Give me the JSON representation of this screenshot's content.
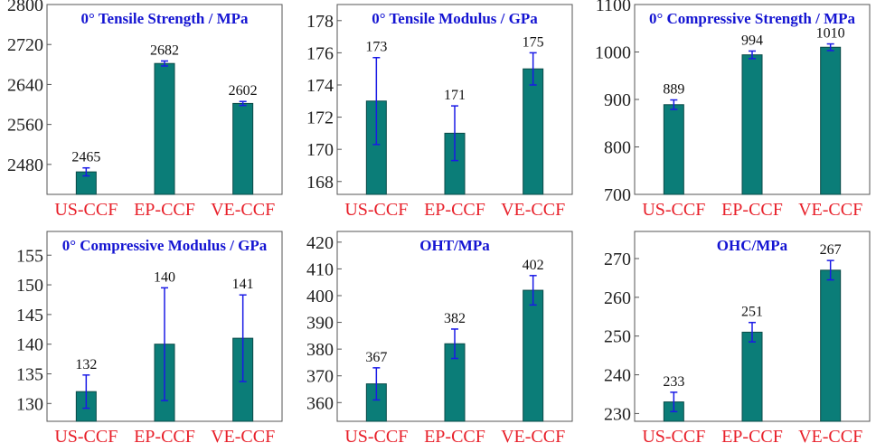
{
  "colors": {
    "bar": "#0b7d78",
    "bar_edge": "#0a4a47",
    "error_bar": "#1a1ae6",
    "title": "#1414d2",
    "category": "#e8202a",
    "tick": "#222222",
    "frame": "#555555"
  },
  "chart_data": [
    {
      "type": "bar",
      "title": "0° Tensile Strength / MPa",
      "categories": [
        "US-CCF",
        "EP-CCF",
        "VE-CCF"
      ],
      "values": [
        2465,
        2682,
        2602
      ],
      "value_labels": [
        "2465",
        "2682",
        "2602"
      ],
      "errors": [
        8,
        5,
        4
      ],
      "ylim": [
        2420,
        2800
      ],
      "yticks": [
        2480,
        2560,
        2640,
        2720,
        2800
      ],
      "ytick_labels": [
        "2480",
        "2560",
        "2640",
        "2720",
        "2800"
      ],
      "grid": false,
      "xlabel": "",
      "ylabel": ""
    },
    {
      "type": "bar",
      "title": "0° Tensile Modulus / GPa",
      "categories": [
        "US-CCF",
        "EP-CCF",
        "VE-CCF"
      ],
      "values": [
        173,
        171,
        175
      ],
      "value_labels": [
        "173",
        "171",
        "175"
      ],
      "errors": [
        2.7,
        1.7,
        1.0
      ],
      "ylim": [
        167.2,
        179
      ],
      "yticks": [
        168,
        170,
        172,
        174,
        176,
        178
      ],
      "ytick_labels": [
        "168",
        "170",
        "172",
        "174",
        "176",
        "178"
      ],
      "grid": false,
      "xlabel": "",
      "ylabel": ""
    },
    {
      "type": "bar",
      "title": "0° Compressive Strength / MPa",
      "categories": [
        "US-CCF",
        "EP-CCF",
        "VE-CCF"
      ],
      "values": [
        889,
        994,
        1010
      ],
      "value_labels": [
        "889",
        "994",
        "1010"
      ],
      "errors": [
        10,
        8,
        7
      ],
      "ylim": [
        700,
        1100
      ],
      "yticks": [
        700,
        800,
        900,
        1000,
        1100
      ],
      "ytick_labels": [
        "700",
        "800",
        "900",
        "1000",
        "1100"
      ],
      "grid": false,
      "xlabel": "",
      "ylabel": ""
    },
    {
      "type": "bar",
      "title": "0° Compressive Modulus / GPa",
      "categories": [
        "US-CCF",
        "EP-CCF",
        "VE-CCF"
      ],
      "values": [
        132,
        140,
        141
      ],
      "value_labels": [
        "132",
        "140",
        "141"
      ],
      "errors": [
        2.8,
        9.5,
        7.3
      ],
      "ylim": [
        127,
        159
      ],
      "yticks": [
        130,
        135,
        140,
        145,
        150,
        155
      ],
      "ytick_labels": [
        "130",
        "135",
        "140",
        "145",
        "150",
        "155"
      ],
      "grid": false,
      "xlabel": "",
      "ylabel": ""
    },
    {
      "type": "bar",
      "title": "OHT/MPa",
      "categories": [
        "US-CCF",
        "EP-CCF",
        "VE-CCF"
      ],
      "values": [
        367,
        382,
        402
      ],
      "value_labels": [
        "367",
        "382",
        "402"
      ],
      "errors": [
        6,
        5.5,
        5.5
      ],
      "ylim": [
        353,
        424
      ],
      "yticks": [
        360,
        370,
        380,
        390,
        400,
        410,
        420
      ],
      "ytick_labels": [
        "360",
        "370",
        "380",
        "390",
        "400",
        "410",
        "420"
      ],
      "grid": false,
      "xlabel": "",
      "ylabel": ""
    },
    {
      "type": "bar",
      "title": "OHC/MPa",
      "categories": [
        "US-CCF",
        "EP-CCF",
        "VE-CCF"
      ],
      "values": [
        233,
        251,
        267
      ],
      "value_labels": [
        "233",
        "251",
        "267"
      ],
      "errors": [
        2.5,
        2.5,
        2.5
      ],
      "ylim": [
        228,
        277
      ],
      "yticks": [
        230,
        240,
        250,
        260,
        270
      ],
      "ytick_labels": [
        "230",
        "240",
        "250",
        "260",
        "270"
      ],
      "grid": false,
      "xlabel": "",
      "ylabel": ""
    }
  ]
}
